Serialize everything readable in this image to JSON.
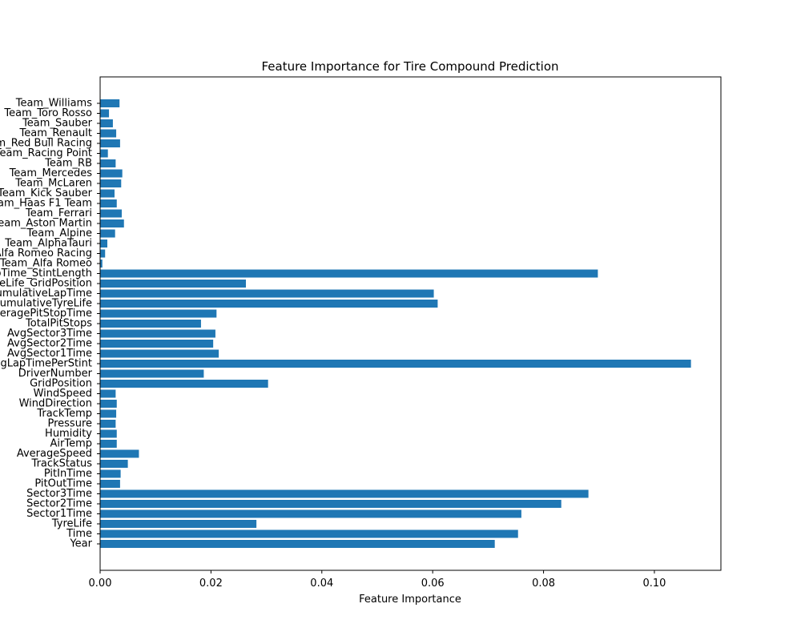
{
  "chart_data": {
    "type": "bar",
    "orientation": "horizontal",
    "title": "Feature Importance for Tire Compound Prediction",
    "xlabel": "Feature Importance",
    "ylabel": "",
    "xlim": [
      0.0,
      0.112
    ],
    "xticks": [
      0.0,
      0.02,
      0.04,
      0.06,
      0.08,
      0.1
    ],
    "xtick_labels": [
      "0.00",
      "0.02",
      "0.04",
      "0.06",
      "0.08",
      "0.10"
    ],
    "grid": false,
    "bar_color": "#1f77b4",
    "categories": [
      "Year",
      "Time",
      "TyreLife",
      "Sector1Time",
      "Sector2Time",
      "Sector3Time",
      "PitOutTime",
      "PitInTime",
      "TrackStatus",
      "AverageSpeed",
      "AirTemp",
      "Humidity",
      "Pressure",
      "TrackTemp",
      "WindDirection",
      "WindSpeed",
      "GridPosition",
      "DriverNumber",
      "AvgLapTimePerStint",
      "AvgSector1Time",
      "AvgSector2Time",
      "AvgSector3Time",
      "TotalPitStops",
      "AveragePitStopTime",
      "CumulativeTyreLife",
      "CumulativeLapTime",
      "TyreLife_GridPosition",
      "LapTime_StintLength",
      "Team_Alfa Romeo",
      "Team_Alfa Romeo Racing",
      "Team_AlphaTauri",
      "Team_Alpine",
      "Team_Aston Martin",
      "Team_Ferrari",
      "Team_Haas F1 Team",
      "Team_Kick Sauber",
      "Team_McLaren",
      "Team_Mercedes",
      "Team_RB",
      "Team_Racing Point",
      "Team_Red Bull Racing",
      "Team_Renault",
      "Team_Sauber",
      "Team_Toro Rosso",
      "Team_Williams"
    ],
    "values": [
      0.0712,
      0.0754,
      0.0282,
      0.076,
      0.0832,
      0.0881,
      0.0036,
      0.0037,
      0.005,
      0.007,
      0.003,
      0.003,
      0.0028,
      0.0029,
      0.003,
      0.0028,
      0.0303,
      0.0187,
      0.1066,
      0.0214,
      0.0204,
      0.0208,
      0.0182,
      0.021,
      0.0609,
      0.0602,
      0.0263,
      0.0898,
      0.0004,
      0.0009,
      0.0013,
      0.0027,
      0.0043,
      0.0039,
      0.003,
      0.0026,
      0.0038,
      0.004,
      0.0028,
      0.0014,
      0.0036,
      0.0029,
      0.0023,
      0.0016,
      0.0035
    ]
  }
}
